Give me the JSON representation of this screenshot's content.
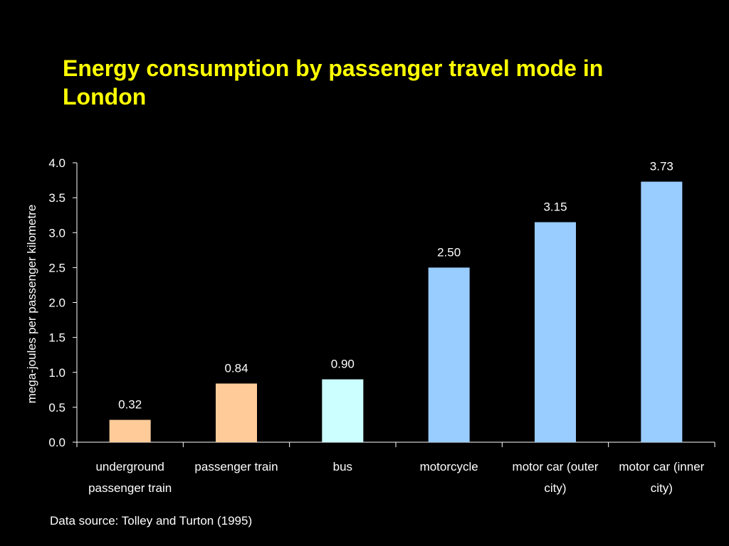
{
  "slide": {
    "title": "Energy consumption by passenger travel mode in London",
    "source": "Data source: Tolley and Turton (1995)"
  },
  "chart_data": {
    "type": "bar",
    "title": "Energy consumption by passenger travel mode in London",
    "ylabel": "mega-joules per passenger kilometre",
    "xlabel": "",
    "ylim": [
      0,
      4.0
    ],
    "yticks": [
      "0.0",
      "0.5",
      "1.0",
      "1.5",
      "2.0",
      "2.5",
      "3.0",
      "3.5",
      "4.0"
    ],
    "categories": [
      [
        "underground",
        "passenger train"
      ],
      [
        "passenger train"
      ],
      [
        "bus"
      ],
      [
        "motorcycle"
      ],
      [
        "motor car (outer",
        "city)"
      ],
      [
        "motor car (inner",
        "city)"
      ]
    ],
    "values": [
      0.32,
      0.84,
      0.9,
      2.5,
      3.15,
      3.73
    ],
    "data_labels": [
      "0.32",
      "0.84",
      "0.90",
      "2.50",
      "3.15",
      "3.73"
    ],
    "bar_colors": [
      "#ffcc99",
      "#ffcc99",
      "#ccffff",
      "#99ccff",
      "#99ccff",
      "#99ccff"
    ],
    "grid": false,
    "legend": "none"
  }
}
